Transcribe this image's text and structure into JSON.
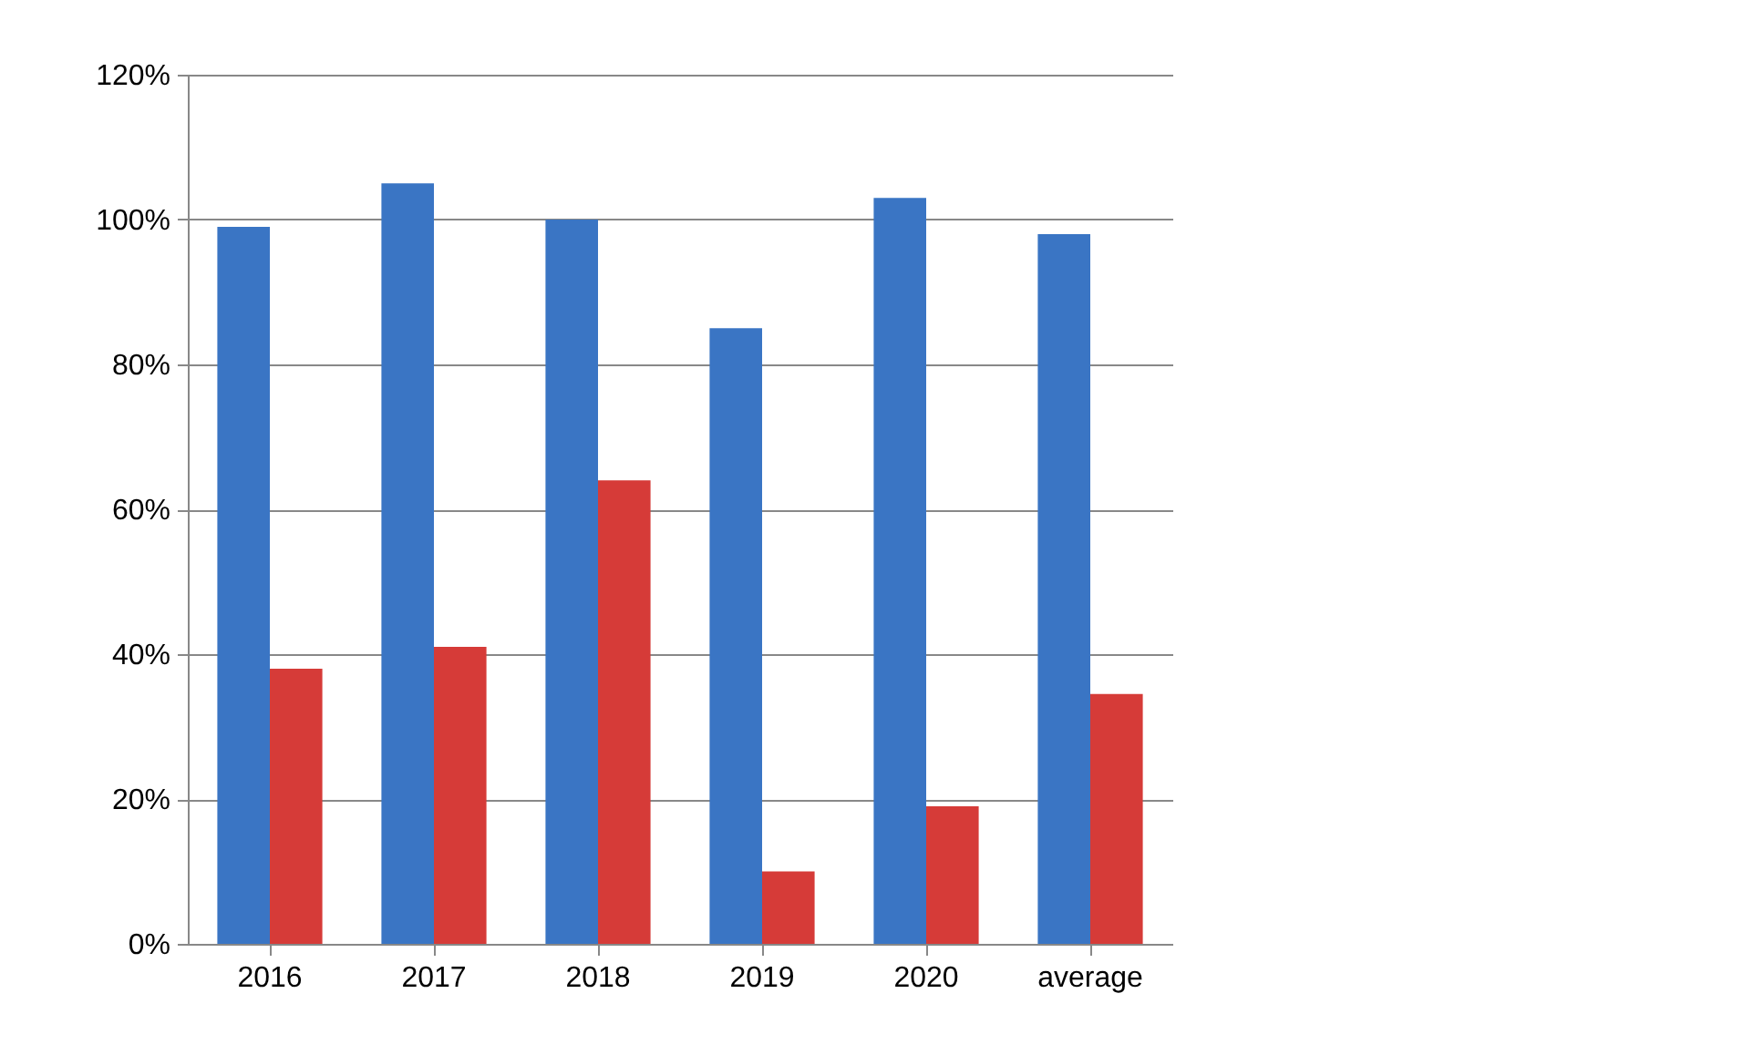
{
  "chart_data": {
    "type": "bar",
    "categories": [
      "2016",
      "2017",
      "2018",
      "2019",
      "2020",
      "average"
    ],
    "series": [
      {
        "color": "#3a75c4",
        "values": [
          99,
          105,
          100,
          85,
          103,
          98
        ]
      },
      {
        "color": "#d63b38",
        "values": [
          38,
          41,
          64,
          10,
          19,
          34.5
        ]
      }
    ],
    "ylim": [
      0,
      120
    ],
    "yticks": [
      {
        "value": 0,
        "label": "0%"
      },
      {
        "value": 20,
        "label": "20%"
      },
      {
        "value": 40,
        "label": "40%"
      },
      {
        "value": 60,
        "label": "60%"
      },
      {
        "value": 80,
        "label": "80%"
      },
      {
        "value": 100,
        "label": "100%"
      },
      {
        "value": 120,
        "label": "120%"
      }
    ],
    "grid": "y"
  }
}
